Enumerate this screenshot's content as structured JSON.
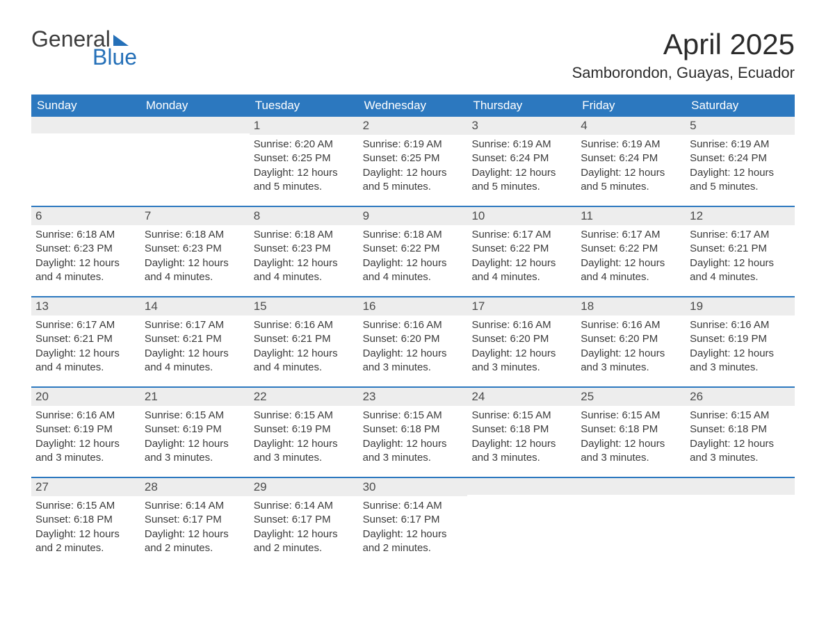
{
  "logo": {
    "word1": "General",
    "word2": "Blue",
    "text_color": "#3d3d3d",
    "accent_color": "#2570b8"
  },
  "title": "April 2025",
  "location": "Samborondon, Guayas, Ecuador",
  "colors": {
    "header_bg": "#2c78bf",
    "header_text": "#ffffff",
    "daynum_bg": "#ededed",
    "daynum_text": "#4a4a4a",
    "body_text": "#3a3a3a",
    "week_border": "#2c78bf",
    "page_bg": "#ffffff"
  },
  "fonts": {
    "title_size_pt": 32,
    "location_size_pt": 17,
    "header_size_pt": 13,
    "daynum_size_pt": 13,
    "body_size_pt": 11
  },
  "day_headers": [
    "Sunday",
    "Monday",
    "Tuesday",
    "Wednesday",
    "Thursday",
    "Friday",
    "Saturday"
  ],
  "weeks": [
    [
      {
        "day": "",
        "lines": []
      },
      {
        "day": "",
        "lines": []
      },
      {
        "day": "1",
        "lines": [
          "Sunrise: 6:20 AM",
          "Sunset: 6:25 PM",
          "Daylight: 12 hours and 5 minutes."
        ]
      },
      {
        "day": "2",
        "lines": [
          "Sunrise: 6:19 AM",
          "Sunset: 6:25 PM",
          "Daylight: 12 hours and 5 minutes."
        ]
      },
      {
        "day": "3",
        "lines": [
          "Sunrise: 6:19 AM",
          "Sunset: 6:24 PM",
          "Daylight: 12 hours and 5 minutes."
        ]
      },
      {
        "day": "4",
        "lines": [
          "Sunrise: 6:19 AM",
          "Sunset: 6:24 PM",
          "Daylight: 12 hours and 5 minutes."
        ]
      },
      {
        "day": "5",
        "lines": [
          "Sunrise: 6:19 AM",
          "Sunset: 6:24 PM",
          "Daylight: 12 hours and 5 minutes."
        ]
      }
    ],
    [
      {
        "day": "6",
        "lines": [
          "Sunrise: 6:18 AM",
          "Sunset: 6:23 PM",
          "Daylight: 12 hours and 4 minutes."
        ]
      },
      {
        "day": "7",
        "lines": [
          "Sunrise: 6:18 AM",
          "Sunset: 6:23 PM",
          "Daylight: 12 hours and 4 minutes."
        ]
      },
      {
        "day": "8",
        "lines": [
          "Sunrise: 6:18 AM",
          "Sunset: 6:23 PM",
          "Daylight: 12 hours and 4 minutes."
        ]
      },
      {
        "day": "9",
        "lines": [
          "Sunrise: 6:18 AM",
          "Sunset: 6:22 PM",
          "Daylight: 12 hours and 4 minutes."
        ]
      },
      {
        "day": "10",
        "lines": [
          "Sunrise: 6:17 AM",
          "Sunset: 6:22 PM",
          "Daylight: 12 hours and 4 minutes."
        ]
      },
      {
        "day": "11",
        "lines": [
          "Sunrise: 6:17 AM",
          "Sunset: 6:22 PM",
          "Daylight: 12 hours and 4 minutes."
        ]
      },
      {
        "day": "12",
        "lines": [
          "Sunrise: 6:17 AM",
          "Sunset: 6:21 PM",
          "Daylight: 12 hours and 4 minutes."
        ]
      }
    ],
    [
      {
        "day": "13",
        "lines": [
          "Sunrise: 6:17 AM",
          "Sunset: 6:21 PM",
          "Daylight: 12 hours and 4 minutes."
        ]
      },
      {
        "day": "14",
        "lines": [
          "Sunrise: 6:17 AM",
          "Sunset: 6:21 PM",
          "Daylight: 12 hours and 4 minutes."
        ]
      },
      {
        "day": "15",
        "lines": [
          "Sunrise: 6:16 AM",
          "Sunset: 6:21 PM",
          "Daylight: 12 hours and 4 minutes."
        ]
      },
      {
        "day": "16",
        "lines": [
          "Sunrise: 6:16 AM",
          "Sunset: 6:20 PM",
          "Daylight: 12 hours and 3 minutes."
        ]
      },
      {
        "day": "17",
        "lines": [
          "Sunrise: 6:16 AM",
          "Sunset: 6:20 PM",
          "Daylight: 12 hours and 3 minutes."
        ]
      },
      {
        "day": "18",
        "lines": [
          "Sunrise: 6:16 AM",
          "Sunset: 6:20 PM",
          "Daylight: 12 hours and 3 minutes."
        ]
      },
      {
        "day": "19",
        "lines": [
          "Sunrise: 6:16 AM",
          "Sunset: 6:19 PM",
          "Daylight: 12 hours and 3 minutes."
        ]
      }
    ],
    [
      {
        "day": "20",
        "lines": [
          "Sunrise: 6:16 AM",
          "Sunset: 6:19 PM",
          "Daylight: 12 hours and 3 minutes."
        ]
      },
      {
        "day": "21",
        "lines": [
          "Sunrise: 6:15 AM",
          "Sunset: 6:19 PM",
          "Daylight: 12 hours and 3 minutes."
        ]
      },
      {
        "day": "22",
        "lines": [
          "Sunrise: 6:15 AM",
          "Sunset: 6:19 PM",
          "Daylight: 12 hours and 3 minutes."
        ]
      },
      {
        "day": "23",
        "lines": [
          "Sunrise: 6:15 AM",
          "Sunset: 6:18 PM",
          "Daylight: 12 hours and 3 minutes."
        ]
      },
      {
        "day": "24",
        "lines": [
          "Sunrise: 6:15 AM",
          "Sunset: 6:18 PM",
          "Daylight: 12 hours and 3 minutes."
        ]
      },
      {
        "day": "25",
        "lines": [
          "Sunrise: 6:15 AM",
          "Sunset: 6:18 PM",
          "Daylight: 12 hours and 3 minutes."
        ]
      },
      {
        "day": "26",
        "lines": [
          "Sunrise: 6:15 AM",
          "Sunset: 6:18 PM",
          "Daylight: 12 hours and 3 minutes."
        ]
      }
    ],
    [
      {
        "day": "27",
        "lines": [
          "Sunrise: 6:15 AM",
          "Sunset: 6:18 PM",
          "Daylight: 12 hours and 2 minutes."
        ]
      },
      {
        "day": "28",
        "lines": [
          "Sunrise: 6:14 AM",
          "Sunset: 6:17 PM",
          "Daylight: 12 hours and 2 minutes."
        ]
      },
      {
        "day": "29",
        "lines": [
          "Sunrise: 6:14 AM",
          "Sunset: 6:17 PM",
          "Daylight: 12 hours and 2 minutes."
        ]
      },
      {
        "day": "30",
        "lines": [
          "Sunrise: 6:14 AM",
          "Sunset: 6:17 PM",
          "Daylight: 12 hours and 2 minutes."
        ]
      },
      {
        "day": "",
        "lines": []
      },
      {
        "day": "",
        "lines": []
      },
      {
        "day": "",
        "lines": []
      }
    ]
  ]
}
